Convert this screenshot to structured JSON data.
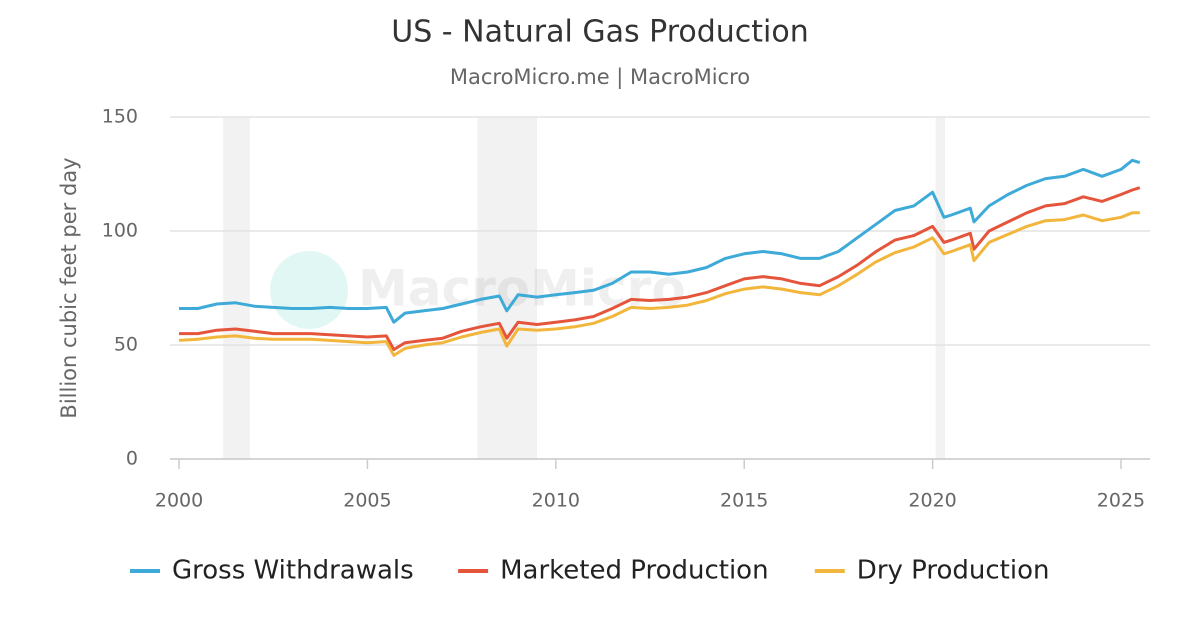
{
  "chart_data": {
    "type": "line",
    "title": "US - Natural Gas Production",
    "subtitle": "MacroMicro.me | MacroMicro",
    "watermark": "MacroMicro",
    "y_label": "Billion cubic feet per day",
    "x": [
      2000,
      2000.5,
      2001,
      2001.5,
      2002,
      2002.5,
      2003,
      2003.5,
      2004,
      2004.5,
      2005,
      2005.5,
      2005.7,
      2006,
      2006.5,
      2007,
      2007.5,
      2008,
      2008.5,
      2008.7,
      2009,
      2009.5,
      2010,
      2010.5,
      2011,
      2011.5,
      2012,
      2012.5,
      2013,
      2013.5,
      2014,
      2014.5,
      2015,
      2015.5,
      2016,
      2016.5,
      2017,
      2017.5,
      2018,
      2018.5,
      2019,
      2019.5,
      2020,
      2020.3,
      2020.5,
      2021,
      2021.1,
      2021.5,
      2022,
      2022.5,
      2023,
      2023.5,
      2024,
      2024.5,
      2025,
      2025.3,
      2025.5
    ],
    "series": [
      {
        "name": "Gross Withdrawals",
        "color": "#3eaad8",
        "values": [
          66,
          66,
          68,
          68.5,
          67,
          66.5,
          66,
          66,
          66.5,
          66,
          66,
          66.5,
          60,
          64,
          65,
          66,
          68,
          70,
          71.5,
          65,
          72,
          71,
          72,
          73,
          74,
          77,
          82,
          82,
          81,
          82,
          84,
          88,
          90,
          91,
          90,
          88,
          88,
          91,
          97,
          103,
          109,
          111,
          117,
          106,
          107,
          110,
          104,
          111,
          116,
          120,
          123,
          124,
          127,
          124,
          127,
          131,
          130
        ]
      },
      {
        "name": "Marketed Production",
        "color": "#e5553c",
        "values": [
          55,
          55,
          56.5,
          57,
          56,
          55,
          55,
          55,
          54.5,
          54,
          53.5,
          54,
          48,
          51,
          52,
          53,
          56,
          58,
          59.5,
          53,
          60,
          59,
          60,
          61,
          62.5,
          66,
          70,
          69.5,
          70,
          71,
          73,
          76,
          79,
          80,
          79,
          77,
          76,
          80,
          85,
          91,
          96,
          98,
          102,
          95,
          96,
          99,
          92,
          100,
          104,
          108,
          111,
          112,
          115,
          113,
          116,
          118,
          119
        ]
      },
      {
        "name": "Dry Production",
        "color": "#f2b63c",
        "values": [
          52,
          52.5,
          53.5,
          54,
          53,
          52.5,
          52.5,
          52.5,
          52,
          51.5,
          51,
          51.5,
          45.5,
          48.5,
          50,
          51,
          53.5,
          55.5,
          57,
          49.5,
          57,
          56.5,
          57,
          58,
          59.5,
          62.5,
          66.5,
          66,
          66.5,
          67.5,
          69.5,
          72.5,
          74.5,
          75.5,
          74.5,
          73,
          72,
          76,
          81,
          86.5,
          90.5,
          93,
          97,
          90,
          91,
          94,
          87,
          95,
          98.5,
          102,
          104.5,
          105,
          107,
          104.5,
          106,
          108,
          108
        ]
      }
    ],
    "recessions": [
      [
        2001.17,
        2001.88
      ],
      [
        2007.92,
        2009.5
      ],
      [
        2020.08,
        2020.33
      ]
    ],
    "xlim": [
      1999.76,
      2025.77
    ],
    "xticks": [
      2000,
      2005,
      2010,
      2015,
      2020,
      2025
    ],
    "ylim": [
      0,
      150
    ],
    "yticks": [
      0,
      50,
      100,
      150
    ],
    "grid": true,
    "legend": "bottom"
  }
}
